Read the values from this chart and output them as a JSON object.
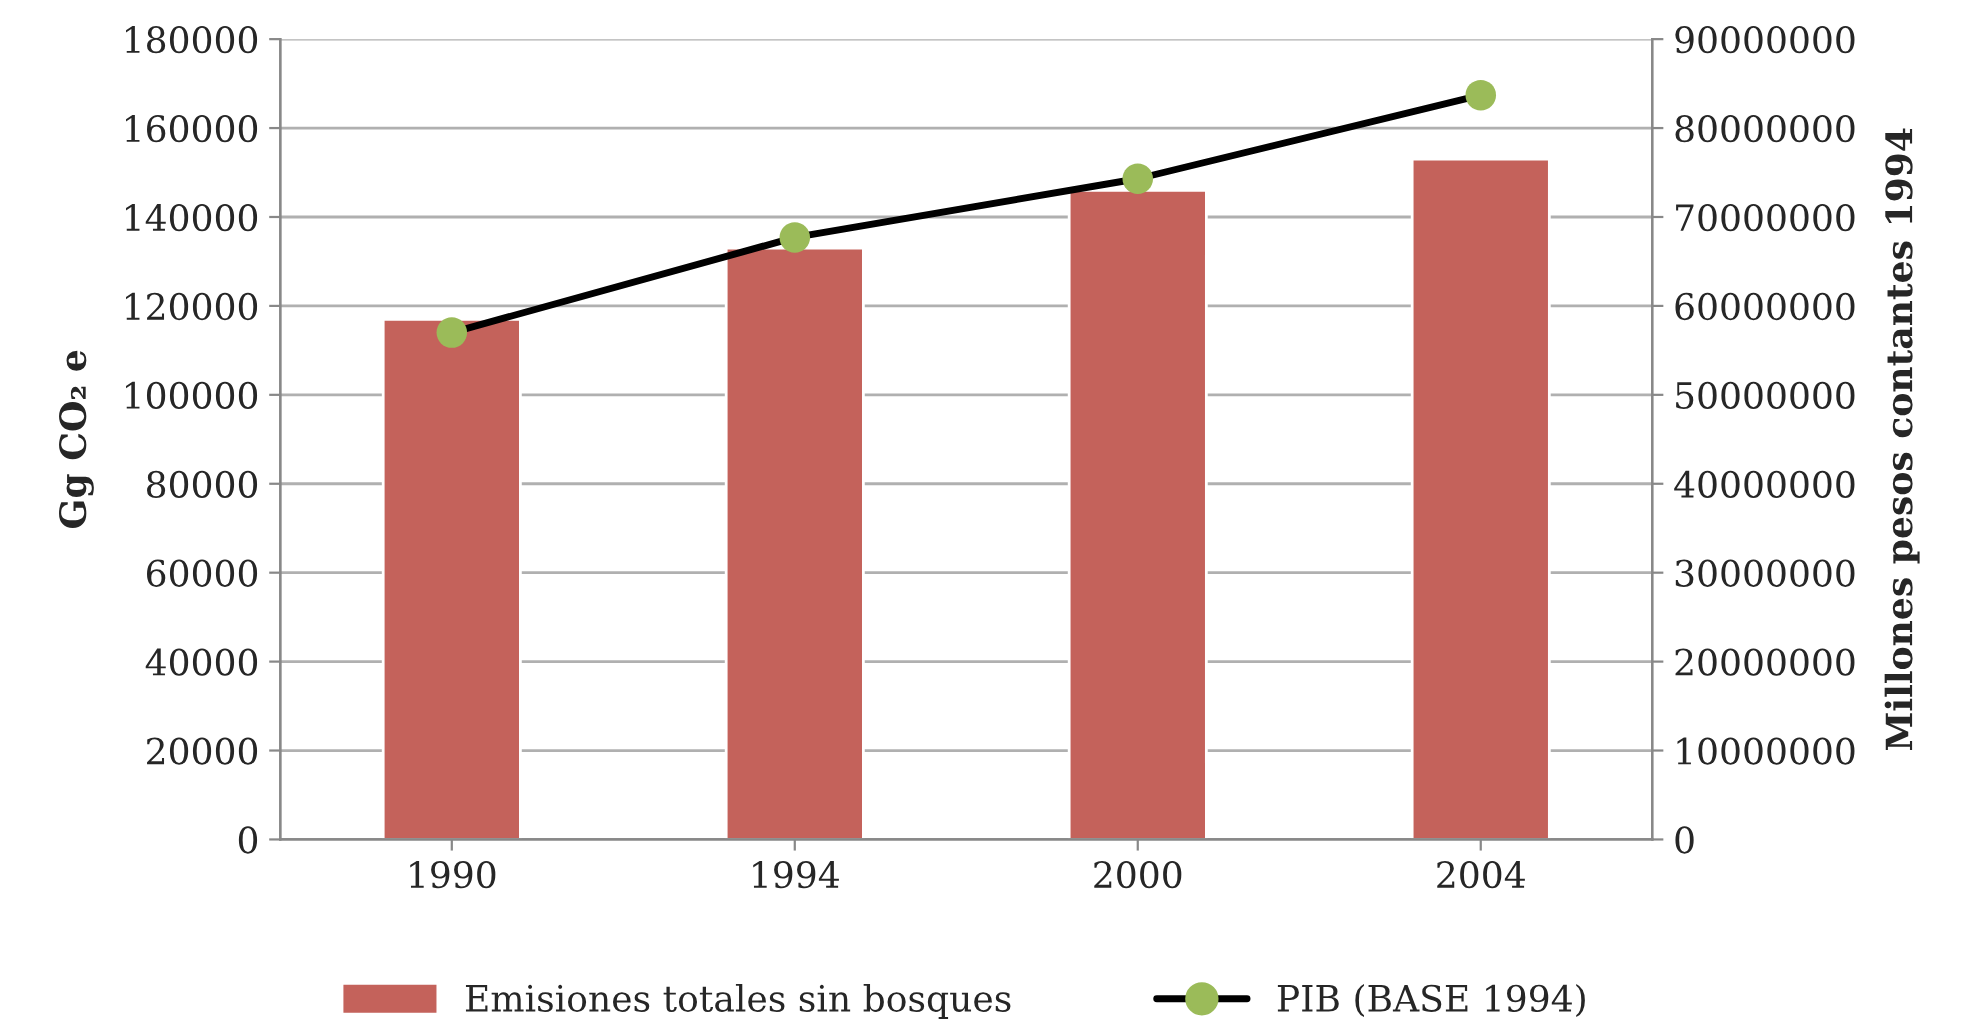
{
  "chart_data": {
    "type": "bar",
    "categories": [
      "1990",
      "1994",
      "2000",
      "2004"
    ],
    "ylabel": "Gg CO₂ e",
    "y2label": "Millones pesos contantes 1994",
    "series": [
      {
        "name": "Emisiones totales sin bosques",
        "color": "#c4625b",
        "values": [
          117000,
          133000,
          146000,
          153000
        ]
      },
      {
        "name": "PIB (BASE 1994)",
        "type": "line",
        "axis": "y2",
        "color": "#000000",
        "colors": [
          "#9bbb59",
          "#9bbb59",
          "#9bbb59",
          "#9bbb59"
        ],
        "values": [
          57000000,
          67700000,
          74300000,
          83700000
        ]
      }
    ],
    "ylim": [
      0,
      180000
    ],
    "yticks": [
      0,
      20000,
      40000,
      60000,
      80000,
      100000,
      120000,
      140000,
      160000,
      180000
    ],
    "y2lim": [
      0,
      90000000
    ],
    "y2ticks": [
      0,
      10000000,
      20000000,
      30000000,
      40000000,
      50000000,
      60000000,
      70000000,
      80000000,
      90000000
    ],
    "grid": "y",
    "legend": "bottom",
    "marker": "circle"
  }
}
